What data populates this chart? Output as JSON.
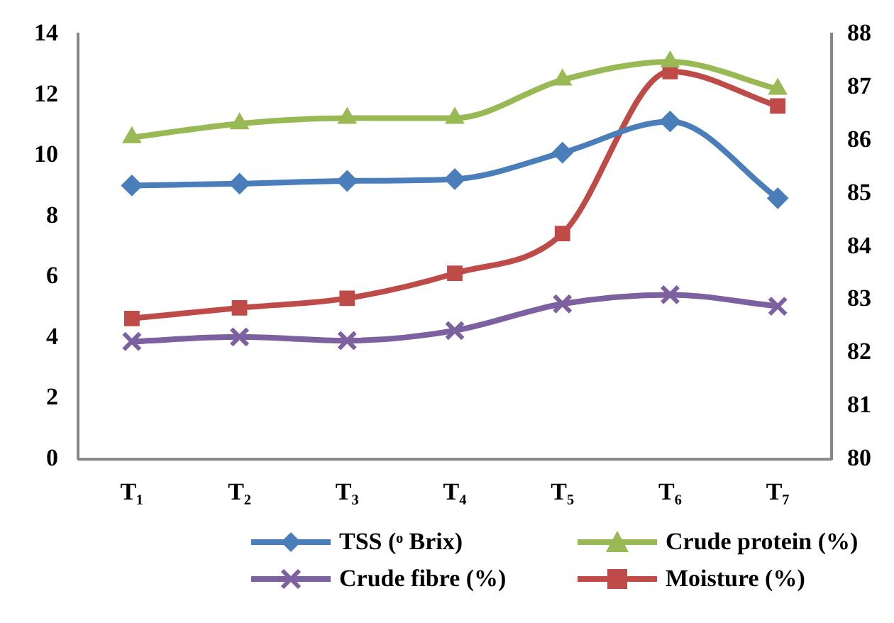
{
  "chart_data": {
    "type": "line",
    "categories": [
      "T₁",
      "T₂",
      "T₃",
      "T₄",
      "T₅",
      "T₆",
      "T₇"
    ],
    "series": [
      {
        "name": "TSS (ᵒ Brix)",
        "color": "#4a7ebb",
        "marker": "diamond",
        "values": [
          9.02,
          9.08,
          9.17,
          9.23,
          10.1,
          11.13,
          8.6
        ]
      },
      {
        "name": "Crude protein (%)",
        "color": "#98b954",
        "marker": "triangle",
        "values": [
          10.6,
          11.06,
          11.24,
          11.24,
          12.5,
          13.1,
          12.2
        ]
      },
      {
        "name": "Crude fibre (%)",
        "color": "#7d60a0",
        "marker": "cross",
        "values": [
          3.88,
          4.03,
          3.91,
          4.24,
          5.12,
          5.42,
          5.04
        ]
      },
      {
        "name": "Moisture (%)",
        "color": "#be4b48",
        "marker": "square",
        "axis": "y2",
        "values": [
          82.65,
          82.85,
          83.03,
          83.5,
          84.25,
          87.3,
          86.65
        ]
      }
    ],
    "ylim": [
      0,
      14
    ],
    "yticks": [
      0,
      2,
      4,
      6,
      8,
      10,
      12,
      14
    ],
    "y2lim": [
      80,
      88
    ],
    "y2ticks": [
      80,
      81,
      82,
      83,
      84,
      85,
      86,
      87,
      88
    ],
    "grid": false,
    "legend": "bottom"
  }
}
